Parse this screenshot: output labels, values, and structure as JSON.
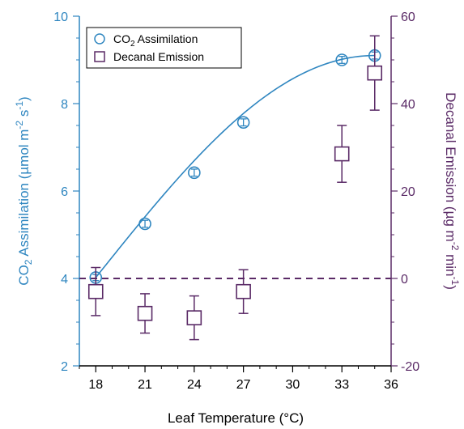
{
  "chart_data": {
    "type": "scatter",
    "title": "",
    "xlabel": "Leaf Temperature (°C)",
    "x_ticks": [
      18,
      21,
      24,
      27,
      30,
      33,
      36
    ],
    "xlim": [
      17,
      36
    ],
    "y_left": {
      "label_main": "CO",
      "label_sub": "2",
      "label_rest": " Assimilation (µmol m",
      "label_sup1": "-2",
      "label_mid": " s",
      "label_sup2": "-1",
      "label_end": ")",
      "ticks": [
        2,
        4,
        6,
        8,
        10
      ],
      "ylim": [
        2,
        10
      ],
      "color": "#2f86c0"
    },
    "y_right": {
      "label_main": "Decanal Emission (µg m",
      "label_sup1": "-2",
      "label_mid": " min",
      "label_sup2": "-1",
      "label_end": ")",
      "ticks": [
        -20,
        0,
        20,
        40,
        60
      ],
      "ylim": [
        -20,
        60
      ],
      "color": "#5a2a66"
    },
    "legend_position": "top-left",
    "series": [
      {
        "name_main": "CO",
        "name_sub": "2",
        "name_rest": " Assimilation",
        "axis": "left",
        "marker": "circle",
        "color": "#2f86c0",
        "x": [
          18,
          21,
          24,
          27,
          33,
          35
        ],
        "y": [
          4.02,
          5.25,
          6.42,
          7.57,
          9.0,
          9.1
        ],
        "err": [
          0.07,
          0.08,
          0.08,
          0.08,
          0.08,
          0.08
        ],
        "fit_curve": true
      },
      {
        "name": "Decanal Emission",
        "axis": "right",
        "marker": "square",
        "color": "#5a2a66",
        "x": [
          18,
          21,
          24,
          27,
          33,
          35
        ],
        "y": [
          -3,
          -8,
          -9,
          -3,
          28.5,
          47
        ],
        "err": [
          5.5,
          4.5,
          5.0,
          5.0,
          6.5,
          8.5
        ]
      }
    ],
    "reference_line": {
      "axis": "right",
      "y": 0,
      "style": "dashed",
      "color": "#5a2a66"
    }
  }
}
